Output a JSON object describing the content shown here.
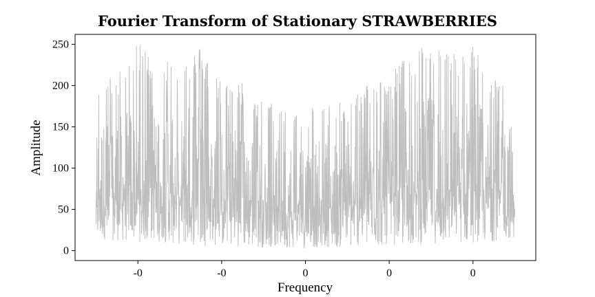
{
  "chart_data": {
    "type": "line",
    "title": "Fourier Transform of Stationary STRAWBERRIES",
    "xlabel": "Frequency",
    "ylabel": "Amplitude",
    "x_tick_labels": [
      "-0",
      "-0",
      "0",
      "0",
      "0"
    ],
    "x_tick_values": [
      -0.4,
      -0.2,
      0.0,
      0.2,
      0.4
    ],
    "xlim": [
      -0.55,
      0.55
    ],
    "y_ticks": [
      0,
      50,
      100,
      150,
      200,
      250
    ],
    "ylim": [
      -12,
      262
    ],
    "grid": false,
    "line_color": "#bebebe",
    "series": [
      {
        "x": [
          -0.5,
          -0.45,
          -0.4,
          -0.35,
          -0.3,
          -0.25,
          -0.2,
          -0.15,
          -0.1,
          -0.05,
          0.0,
          0.05,
          0.1,
          0.15,
          0.2,
          0.25,
          0.3,
          0.35,
          0.4,
          0.45,
          0.5
        ],
        "values": [
          203,
          215,
          250,
          240,
          230,
          248,
          205,
          205,
          180,
          178,
          175,
          178,
          180,
          205,
          210,
          248,
          250,
          240,
          250,
          215,
          203
        ],
        "lower_values": [
          15,
          12,
          10,
          10,
          8,
          6,
          6,
          5,
          4,
          4,
          3,
          4,
          4,
          5,
          6,
          6,
          8,
          10,
          10,
          12,
          15
        ]
      }
    ]
  }
}
